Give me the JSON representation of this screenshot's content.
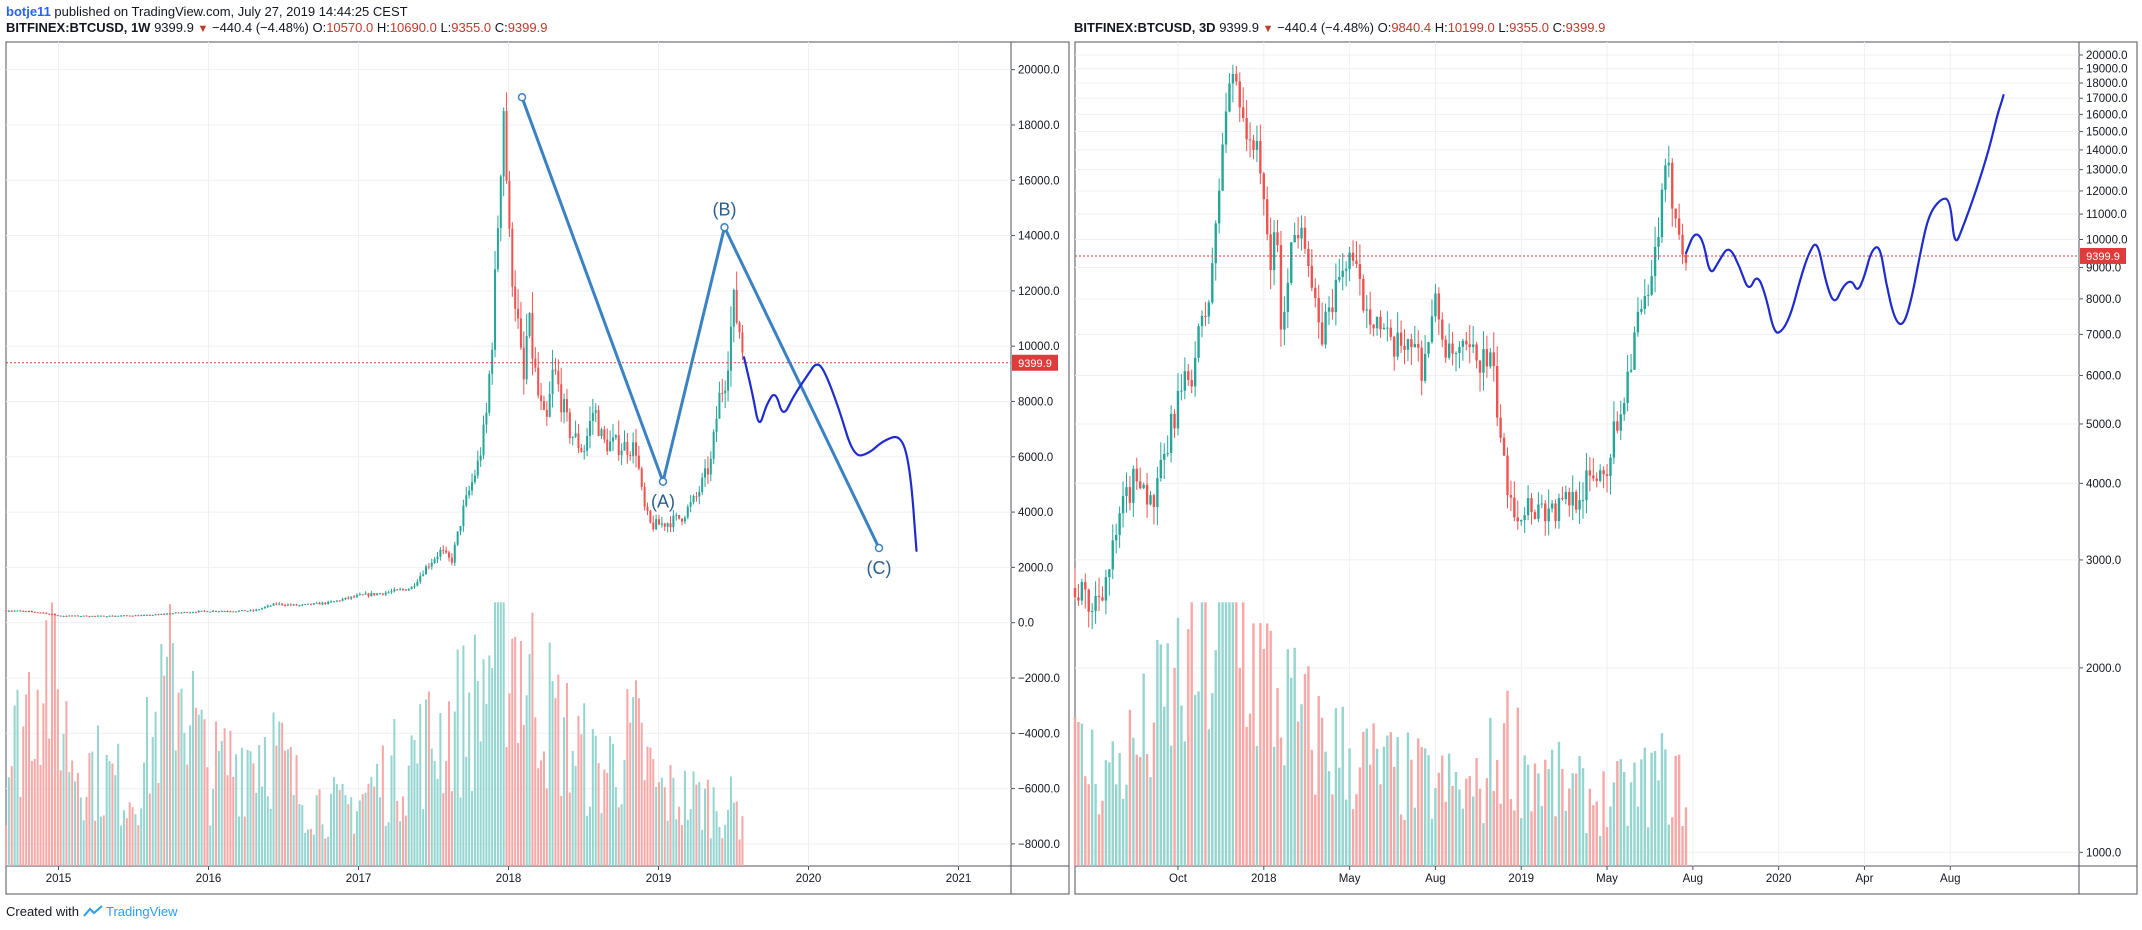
{
  "header": {
    "author": "botje11",
    "published": "published on TradingView.com, July 27, 2019 14:44:25 CEST"
  },
  "footer": {
    "created_with": "Created with",
    "brand": "TradingView"
  },
  "colors": {
    "up": "#26a69a",
    "down": "#ef5350",
    "drawing": "#3a82c4",
    "projection": "#1e2bd1",
    "price_line": "#e03a3a"
  },
  "chart_data": [
    {
      "type": "candlestick",
      "legend": {
        "symbol": "BITFINEX:BTCUSD, 1W",
        "last": "9399.9",
        "change": "−440.4 (−4.48%)",
        "o_label": "O:",
        "o": "10570.0",
        "h_label": "H:",
        "h": "10690.0",
        "l_label": "L:",
        "l": "9355.0",
        "c_label": "C:",
        "c": "9399.9"
      },
      "price_label": "9399.9",
      "scale": "linear",
      "ylim": [
        -8800,
        21000
      ],
      "yticks": [
        "20000.0",
        "18000.0",
        "16000.0",
        "14000.0",
        "12000.0",
        "10000.0",
        "8000.0",
        "6000.0",
        "4000.0",
        "2000.0",
        "0.0",
        "−2000.0",
        "−4000.0",
        "−6000.0",
        "−8000.0"
      ],
      "ytick_values": [
        20000,
        18000,
        16000,
        14000,
        12000,
        10000,
        8000,
        6000,
        4000,
        2000,
        0,
        -2000,
        -4000,
        -6000,
        -8000
      ],
      "xticks": [
        "2015",
        "2016",
        "2017",
        "2018",
        "2019",
        "2020",
        "2021"
      ],
      "xtick_times": [
        2015,
        2016,
        2017,
        2018,
        2019,
        2020,
        2021
      ],
      "xlim": [
        2014.65,
        2021.35
      ],
      "price_path": [
        [
          2014.65,
          450
        ],
        [
          2014.9,
          360
        ],
        [
          2015.0,
          250
        ],
        [
          2015.3,
          240
        ],
        [
          2015.6,
          270
        ],
        [
          2015.85,
          380
        ],
        [
          2016.0,
          420
        ],
        [
          2016.3,
          430
        ],
        [
          2016.45,
          680
        ],
        [
          2016.6,
          620
        ],
        [
          2016.8,
          720
        ],
        [
          2017.0,
          970
        ],
        [
          2017.2,
          1100
        ],
        [
          2017.35,
          1250
        ],
        [
          2017.45,
          2000
        ],
        [
          2017.55,
          2600
        ],
        [
          2017.62,
          2200
        ],
        [
          2017.7,
          4100
        ],
        [
          2017.8,
          5800
        ],
        [
          2017.85,
          7300
        ],
        [
          2017.9,
          11000
        ],
        [
          2017.95,
          17000
        ],
        [
          2017.97,
          19000
        ],
        [
          2018.0,
          14000
        ],
        [
          2018.05,
          11500
        ],
        [
          2018.1,
          8500
        ],
        [
          2018.13,
          11000
        ],
        [
          2018.2,
          8100
        ],
        [
          2018.25,
          7000
        ],
        [
          2018.3,
          9200
        ],
        [
          2018.4,
          7000
        ],
        [
          2018.5,
          6200
        ],
        [
          2018.57,
          7800
        ],
        [
          2018.63,
          6500
        ],
        [
          2018.75,
          6400
        ],
        [
          2018.85,
          6300
        ],
        [
          2018.9,
          4200
        ],
        [
          2018.95,
          3500
        ],
        [
          2019.05,
          3600
        ],
        [
          2019.15,
          3800
        ],
        [
          2019.25,
          4500
        ],
        [
          2019.35,
          5800
        ],
        [
          2019.4,
          8000
        ],
        [
          2019.45,
          9000
        ],
        [
          2019.5,
          11500
        ],
        [
          2019.55,
          10400
        ],
        [
          2019.57,
          9400
        ]
      ],
      "volume_path": [
        [
          2014.65,
          0.25
        ],
        [
          2014.9,
          0.6
        ],
        [
          2015.1,
          0.3
        ],
        [
          2015.5,
          0.2
        ],
        [
          2015.8,
          0.55
        ],
        [
          2016.0,
          0.25
        ],
        [
          2016.4,
          0.35
        ],
        [
          2016.6,
          0.2
        ],
        [
          2016.9,
          0.15
        ],
        [
          2017.2,
          0.25
        ],
        [
          2017.5,
          0.35
        ],
        [
          2017.8,
          0.45
        ],
        [
          2017.95,
          0.7
        ],
        [
          2018.1,
          0.55
        ],
        [
          2018.3,
          0.4
        ],
        [
          2018.6,
          0.25
        ],
        [
          2018.85,
          0.35
        ],
        [
          2019.0,
          0.2
        ],
        [
          2019.3,
          0.18
        ],
        [
          2019.57,
          0.15
        ]
      ],
      "wave_points": [
        {
          "label": "",
          "t": 2018.09,
          "price": 19000
        },
        {
          "label": "(A)",
          "t": 2019.03,
          "price": 5100
        },
        {
          "label": "(B)",
          "t": 2019.44,
          "price": 14300
        },
        {
          "label": "(C)",
          "t": 2020.47,
          "price": 2700
        }
      ],
      "projection": [
        [
          2019.57,
          9600
        ],
        [
          2019.63,
          8200
        ],
        [
          2019.67,
          7000
        ],
        [
          2019.72,
          7900
        ],
        [
          2019.78,
          8400
        ],
        [
          2019.83,
          7400
        ],
        [
          2019.9,
          8200
        ],
        [
          2020.0,
          9000
        ],
        [
          2020.05,
          9400
        ],
        [
          2020.1,
          9200
        ],
        [
          2020.2,
          7800
        ],
        [
          2020.3,
          6000
        ],
        [
          2020.4,
          6100
        ],
        [
          2020.5,
          6600
        ],
        [
          2020.62,
          6800
        ],
        [
          2020.68,
          5500
        ],
        [
          2020.72,
          2600
        ]
      ]
    },
    {
      "type": "candlestick",
      "legend": {
        "symbol": "BITFINEX:BTCUSD, 3D",
        "last": "9399.9",
        "change": "−440.4 (−4.48%)",
        "o_label": "O:",
        "o": "9840.4",
        "h_label": "H:",
        "h": "10199.0",
        "l_label": "L:",
        "l": "9355.0",
        "c_label": "C:",
        "c": "9399.9"
      },
      "price_label": "9399.9",
      "scale": "log",
      "ylim": [
        950,
        21000
      ],
      "yticks": [
        "20000.0",
        "19000.0",
        "18000.0",
        "17000.0",
        "16000.0",
        "15000.0",
        "14000.0",
        "13000.0",
        "12000.0",
        "11000.0",
        "10000.0",
        "9000.0",
        "8000.0",
        "7000.0",
        "6000.0",
        "5000.0",
        "4000.0",
        "3000.0",
        "2000.0",
        "1000.0"
      ],
      "ytick_values": [
        20000,
        19000,
        18000,
        17000,
        16000,
        15000,
        14000,
        13000,
        12000,
        11000,
        10000,
        9000,
        8000,
        7000,
        6000,
        5000,
        4000,
        3000,
        2000,
        1000
      ],
      "xticks": [
        "Oct",
        "2018",
        "May",
        "Aug",
        "2019",
        "May",
        "Aug",
        "2020",
        "Apr",
        "Aug"
      ],
      "xtick_times": [
        0,
        1,
        2,
        3,
        4,
        5,
        6,
        7,
        8,
        9
      ],
      "xlim": [
        -1.2,
        10.5
      ],
      "price_path": [
        [
          -1.2,
          2700
        ],
        [
          -1.0,
          2500
        ],
        [
          -0.8,
          2900
        ],
        [
          -0.6,
          3800
        ],
        [
          -0.45,
          4200
        ],
        [
          -0.3,
          3600
        ],
        [
          -0.15,
          4400
        ],
        [
          0.0,
          5500
        ],
        [
          0.15,
          6000
        ],
        [
          0.25,
          7000
        ],
        [
          0.35,
          7800
        ],
        [
          0.45,
          10500
        ],
        [
          0.55,
          16000
        ],
        [
          0.65,
          19000
        ],
        [
          0.75,
          16500
        ],
        [
          0.85,
          13500
        ],
        [
          0.92,
          15000
        ],
        [
          1.0,
          11000
        ],
        [
          1.08,
          9000
        ],
        [
          1.15,
          11000
        ],
        [
          1.2,
          6800
        ],
        [
          1.3,
          9500
        ],
        [
          1.45,
          11000
        ],
        [
          1.55,
          8500
        ],
        [
          1.65,
          6800
        ],
        [
          1.8,
          8000
        ],
        [
          2.0,
          9500
        ],
        [
          2.15,
          8000
        ],
        [
          2.3,
          7500
        ],
        [
          2.5,
          6500
        ],
        [
          2.7,
          7000
        ],
        [
          2.85,
          6200
        ],
        [
          3.0,
          7800
        ],
        [
          3.15,
          6400
        ],
        [
          3.35,
          6500
        ],
        [
          3.5,
          6400
        ],
        [
          3.65,
          6300
        ],
        [
          3.8,
          4200
        ],
        [
          3.95,
          3600
        ],
        [
          4.1,
          3700
        ],
        [
          4.4,
          3600
        ],
        [
          4.7,
          3900
        ],
        [
          5.0,
          4300
        ],
        [
          5.2,
          5600
        ],
        [
          5.35,
          7300
        ],
        [
          5.5,
          8000
        ],
        [
          5.6,
          10500
        ],
        [
          5.7,
          13000
        ],
        [
          5.8,
          11000
        ],
        [
          5.88,
          10000
        ],
        [
          5.92,
          9400
        ]
      ],
      "volume_path": [
        [
          -1.2,
          0.3
        ],
        [
          -0.8,
          0.25
        ],
        [
          -0.4,
          0.35
        ],
        [
          0.0,
          0.5
        ],
        [
          0.4,
          0.6
        ],
        [
          0.65,
          0.7
        ],
        [
          0.9,
          0.55
        ],
        [
          1.2,
          0.45
        ],
        [
          1.6,
          0.35
        ],
        [
          2.0,
          0.3
        ],
        [
          2.5,
          0.25
        ],
        [
          3.0,
          0.22
        ],
        [
          3.5,
          0.2
        ],
        [
          3.8,
          0.35
        ],
        [
          4.2,
          0.25
        ],
        [
          4.6,
          0.2
        ],
        [
          5.0,
          0.18
        ],
        [
          5.3,
          0.2
        ],
        [
          5.6,
          0.25
        ],
        [
          5.92,
          0.2
        ]
      ],
      "projection": [
        [
          5.92,
          9500
        ],
        [
          6.02,
          10300
        ],
        [
          6.12,
          10000
        ],
        [
          6.2,
          8700
        ],
        [
          6.3,
          9200
        ],
        [
          6.42,
          9800
        ],
        [
          6.55,
          9000
        ],
        [
          6.65,
          8200
        ],
        [
          6.75,
          8800
        ],
        [
          6.85,
          8100
        ],
        [
          6.95,
          7000
        ],
        [
          7.05,
          7100
        ],
        [
          7.15,
          7600
        ],
        [
          7.25,
          8600
        ],
        [
          7.35,
          9500
        ],
        [
          7.45,
          10000
        ],
        [
          7.55,
          8500
        ],
        [
          7.65,
          7800
        ],
        [
          7.75,
          8400
        ],
        [
          7.85,
          8600
        ],
        [
          7.92,
          8200
        ],
        [
          8.0,
          8700
        ],
        [
          8.08,
          9600
        ],
        [
          8.18,
          9800
        ],
        [
          8.25,
          8500
        ],
        [
          8.35,
          7400
        ],
        [
          8.45,
          7200
        ],
        [
          8.55,
          8000
        ],
        [
          8.65,
          9500
        ],
        [
          8.75,
          11000
        ],
        [
          8.9,
          11700
        ],
        [
          9.0,
          11600
        ],
        [
          9.05,
          9700
        ],
        [
          9.15,
          10500
        ],
        [
          9.3,
          12000
        ],
        [
          9.45,
          14000
        ],
        [
          9.55,
          16000
        ],
        [
          9.6,
          16800
        ],
        [
          9.62,
          17200
        ]
      ]
    }
  ]
}
